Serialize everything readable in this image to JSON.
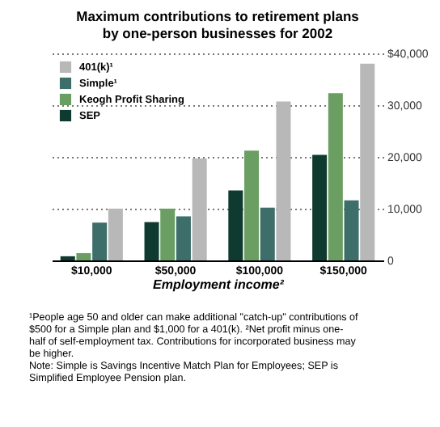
{
  "chart_data": {
    "type": "bar",
    "title": [
      "Maximum contributions to retirement plans",
      "by one-person businesses for 2002"
    ],
    "categories": [
      "$10,000",
      "$50,000",
      "$100,000",
      "$150,000"
    ],
    "series": [
      {
        "name": "SEP",
        "color": "#0f3a30",
        "values": [
          800,
          7400,
          13500,
          20400
        ]
      },
      {
        "name": "Keogh Profit Sharing",
        "color": "#6a9e62",
        "values": [
          1400,
          10000,
          21200,
          32300
        ]
      },
      {
        "name": "Simple¹",
        "color": "#3d6e6a",
        "values": [
          7300,
          8500,
          10200,
          11600
        ]
      },
      {
        "name": "401(k)¹",
        "color": "#b8b8b8",
        "values": [
          10000,
          19700,
          30700,
          38000
        ]
      }
    ],
    "xlabel": "Employment income²",
    "ylim": [
      0,
      40000
    ],
    "yticks": [
      0,
      {
        "value": 10000,
        "label": "10,000"
      },
      {
        "value": 20000,
        "label": "20,000"
      },
      {
        "value": 30000,
        "label": "30,000"
      },
      {
        "value": 40000,
        "label": "$40,000"
      }
    ],
    "grid": "y",
    "legend": "top left",
    "annotations": [
      "¹People age 50 and older can make additional \"catch-up\" contributions of $500 for a Simple plan and $1,000 for a 401(k). ²Net profit minus one-half of self-employment tax. Contributions for incorporated business may be higher.",
      "Note: Simple is Savings Incentive Match Plan for Employees; SEP is Simplified Employee Pension plan."
    ]
  }
}
